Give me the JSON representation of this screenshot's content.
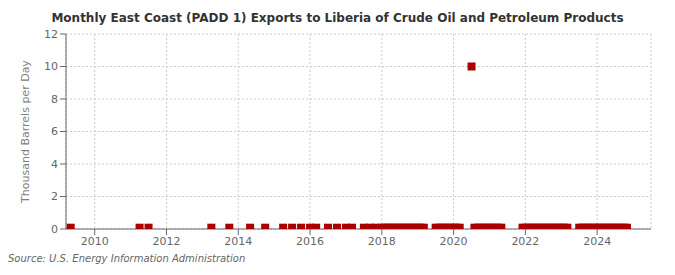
{
  "chart_data": {
    "type": "scatter",
    "title": "Monthly East Coast (PADD 1) Exports to Liberia of Crude Oil and Petroleum Products",
    "y_label": "Thousand Barrels per Day",
    "annotations": [
      "Source: U.S. Energy Information Administration"
    ],
    "xlim": [
      2009.2,
      2025.5
    ],
    "ylim": [
      0,
      12
    ],
    "yticks": [
      0,
      2,
      4,
      6,
      8,
      10,
      12
    ],
    "xticks": [
      2010,
      2012,
      2014,
      2016,
      2018,
      2020,
      2022,
      2024
    ],
    "grid": true,
    "color": "#aa0000",
    "marker": "square",
    "x": [
      2009.33,
      2011.25,
      2011.5,
      2013.25,
      2013.75,
      2014.33,
      2014.75,
      2015.25,
      2015.5,
      2015.75,
      2016.0,
      2016.17,
      2016.5,
      2016.75,
      2017.0,
      2017.17,
      2017.5,
      2017.67,
      2017.83,
      2018.0,
      2018.08,
      2018.17,
      2018.25,
      2018.33,
      2018.42,
      2018.5,
      2018.58,
      2018.67,
      2018.75,
      2018.83,
      2018.92,
      2019.0,
      2019.08,
      2019.17,
      2019.5,
      2019.58,
      2019.67,
      2019.75,
      2019.83,
      2019.92,
      2020.0,
      2020.08,
      2020.17,
      2020.5,
      2020.58,
      2020.67,
      2020.75,
      2020.83,
      2020.92,
      2021.0,
      2021.08,
      2021.17,
      2021.25,
      2021.33,
      2021.92,
      2022.0,
      2022.08,
      2022.17,
      2022.25,
      2022.33,
      2022.42,
      2022.5,
      2022.58,
      2022.67,
      2022.75,
      2022.83,
      2022.92,
      2023.0,
      2023.08,
      2023.17,
      2023.5,
      2023.58,
      2023.67,
      2023.75,
      2023.83,
      2023.92,
      2024.0,
      2024.08,
      2024.17,
      2024.25,
      2024.33,
      2024.42,
      2024.5,
      2024.58,
      2024.67,
      2024.75,
      2024.83
    ],
    "values": [
      0.08,
      0.08,
      0.08,
      0.08,
      0.08,
      0.08,
      0.08,
      0.08,
      0.08,
      0.08,
      0.08,
      0.08,
      0.08,
      0.08,
      0.08,
      0.08,
      0.08,
      0.08,
      0.08,
      0.08,
      0.08,
      0.08,
      0.08,
      0.08,
      0.08,
      0.08,
      0.08,
      0.08,
      0.08,
      0.08,
      0.08,
      0.08,
      0.08,
      0.08,
      0.08,
      0.08,
      0.08,
      0.08,
      0.08,
      0.08,
      0.08,
      0.08,
      0.08,
      10.0,
      0.08,
      0.08,
      0.08,
      0.08,
      0.08,
      0.08,
      0.08,
      0.08,
      0.08,
      0.08,
      0.08,
      0.08,
      0.08,
      0.08,
      0.08,
      0.08,
      0.08,
      0.08,
      0.08,
      0.08,
      0.08,
      0.08,
      0.08,
      0.08,
      0.08,
      0.08,
      0.08,
      0.08,
      0.08,
      0.08,
      0.08,
      0.08,
      0.08,
      0.08,
      0.08,
      0.08,
      0.08,
      0.08,
      0.08,
      0.08,
      0.08,
      0.08,
      0.08
    ]
  }
}
